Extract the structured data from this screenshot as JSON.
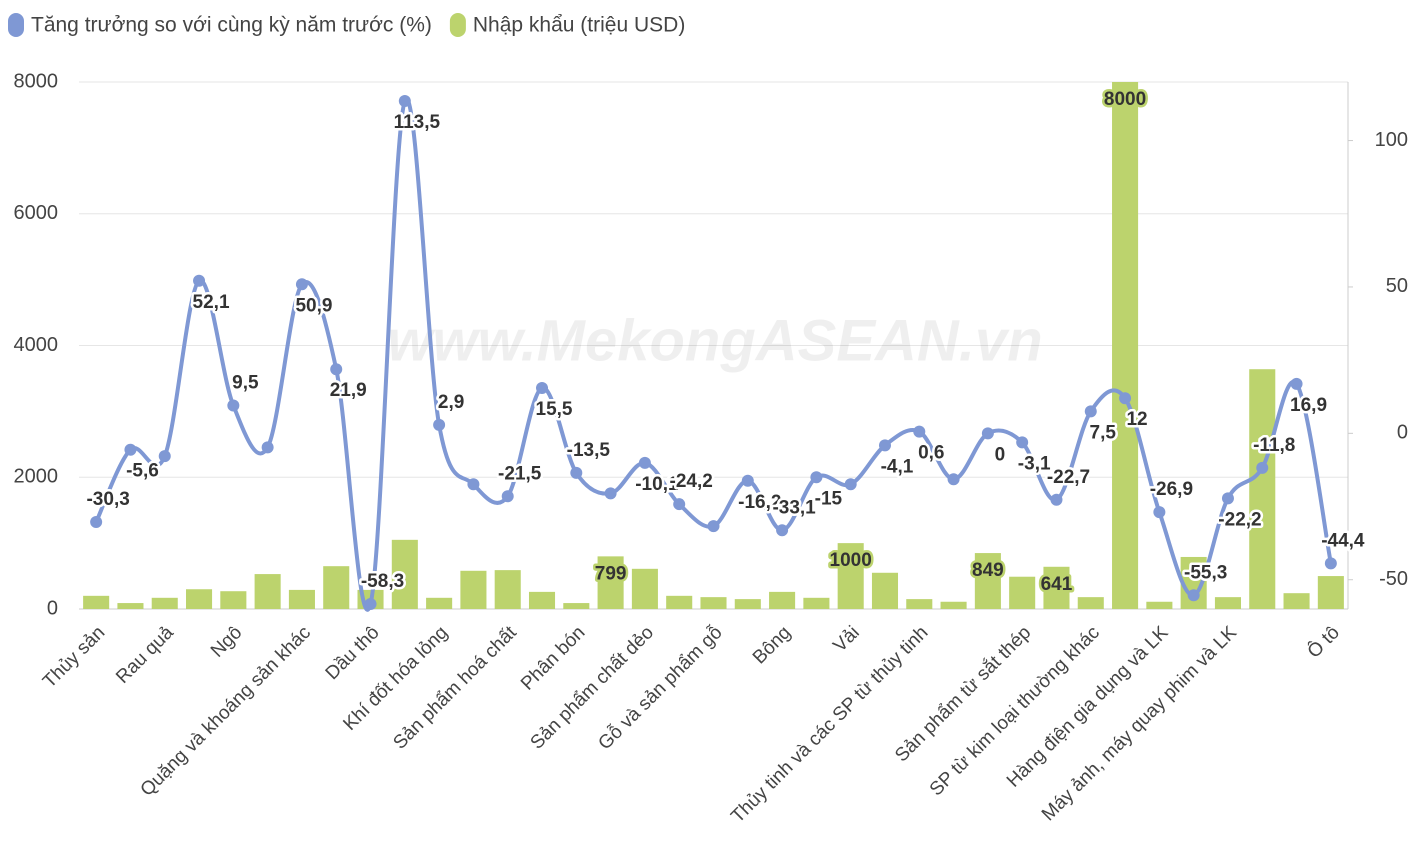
{
  "chart_data": {
    "type": "bar-line",
    "watermark": "www.MekongASEAN.vn",
    "categories": [
      "Thủy sản",
      null,
      "Rau quả",
      null,
      "Ngô",
      null,
      "Quặng và khoáng sản khác",
      null,
      "Dầu thô",
      null,
      "Khí đốt hóa lỏng",
      null,
      "Sản phẩm hoá chất",
      null,
      "Phân bón",
      null,
      "Sản phẩm chất dẻo",
      null,
      "Gỗ và sản phẩm gỗ",
      null,
      "Bông",
      null,
      "Vải",
      null,
      "Thủy tinh và các SP từ thủy tinh",
      null,
      null,
      "Sản phẩm từ sắt thép",
      null,
      "SP từ kim loại thường khác",
      null,
      "Hàng điện gia dụng và LK",
      null,
      "Máy ảnh, máy quay phim và LK",
      null,
      null,
      "Ô tô"
    ],
    "series": [
      {
        "name": "Nhập khẩu (triệu USD)",
        "type": "bar",
        "axis": "y",
        "color": "#bcd36d",
        "values": [
          200,
          90,
          170,
          300,
          270,
          530,
          290,
          650,
          290,
          1050,
          170,
          580,
          590,
          260,
          90,
          799,
          610,
          200,
          180,
          150,
          260,
          170,
          1000,
          550,
          150,
          110,
          849,
          490,
          641,
          180,
          8000,
          110,
          790,
          180,
          3640,
          240,
          500
        ],
        "value_labels": [
          null,
          null,
          null,
          null,
          null,
          null,
          null,
          null,
          null,
          null,
          null,
          null,
          null,
          null,
          null,
          "799",
          null,
          null,
          null,
          null,
          null,
          null,
          "1000",
          null,
          null,
          null,
          "849",
          null,
          "641",
          null,
          "8000",
          null,
          null,
          null,
          null,
          null,
          null
        ]
      },
      {
        "name": "Tăng trưởng so với cùng kỳ năm trước (%)",
        "type": "line",
        "axis": "y2",
        "color": "#7f98d4",
        "values": [
          -30.3,
          -5.6,
          -7.8,
          52.1,
          9.5,
          -4.8,
          50.9,
          21.9,
          -58.3,
          113.5,
          2.9,
          -17.4,
          -21.5,
          15.5,
          -13.5,
          -20.5,
          -10.1,
          -24.2,
          -31.7,
          -16.2,
          -33.1,
          -15,
          -17.4,
          -4.1,
          0.6,
          -15.7,
          0,
          -3.1,
          -22.7,
          7.5,
          12,
          -26.9,
          -55.3,
          -22.2,
          -11.8,
          16.9,
          -44.4
        ],
        "value_labels": [
          "-30,3",
          "-5,6",
          null,
          "52,1",
          "9,5",
          null,
          "50,9",
          "21,9",
          "-58,3",
          "113,5",
          "2,9",
          null,
          "-21,5",
          "15,5",
          "-13,5",
          null,
          "-10,1",
          "-24,2",
          null,
          "-16,2",
          "-33,1",
          "-15",
          null,
          "-4,1",
          "0,6",
          null,
          "0",
          "-3,1",
          "-22,7",
          "7,5",
          "12",
          "-26,9",
          "-55,3",
          "-22,2",
          "-11,8",
          "16,9",
          "-44,4"
        ]
      }
    ],
    "ylim": [
      0,
      8000
    ],
    "yticks": [
      0,
      2000,
      4000,
      6000,
      8000
    ],
    "y2lim": [
      -60,
      120
    ],
    "y2ticks": [
      -50,
      0,
      50,
      100
    ],
    "grid": true
  }
}
